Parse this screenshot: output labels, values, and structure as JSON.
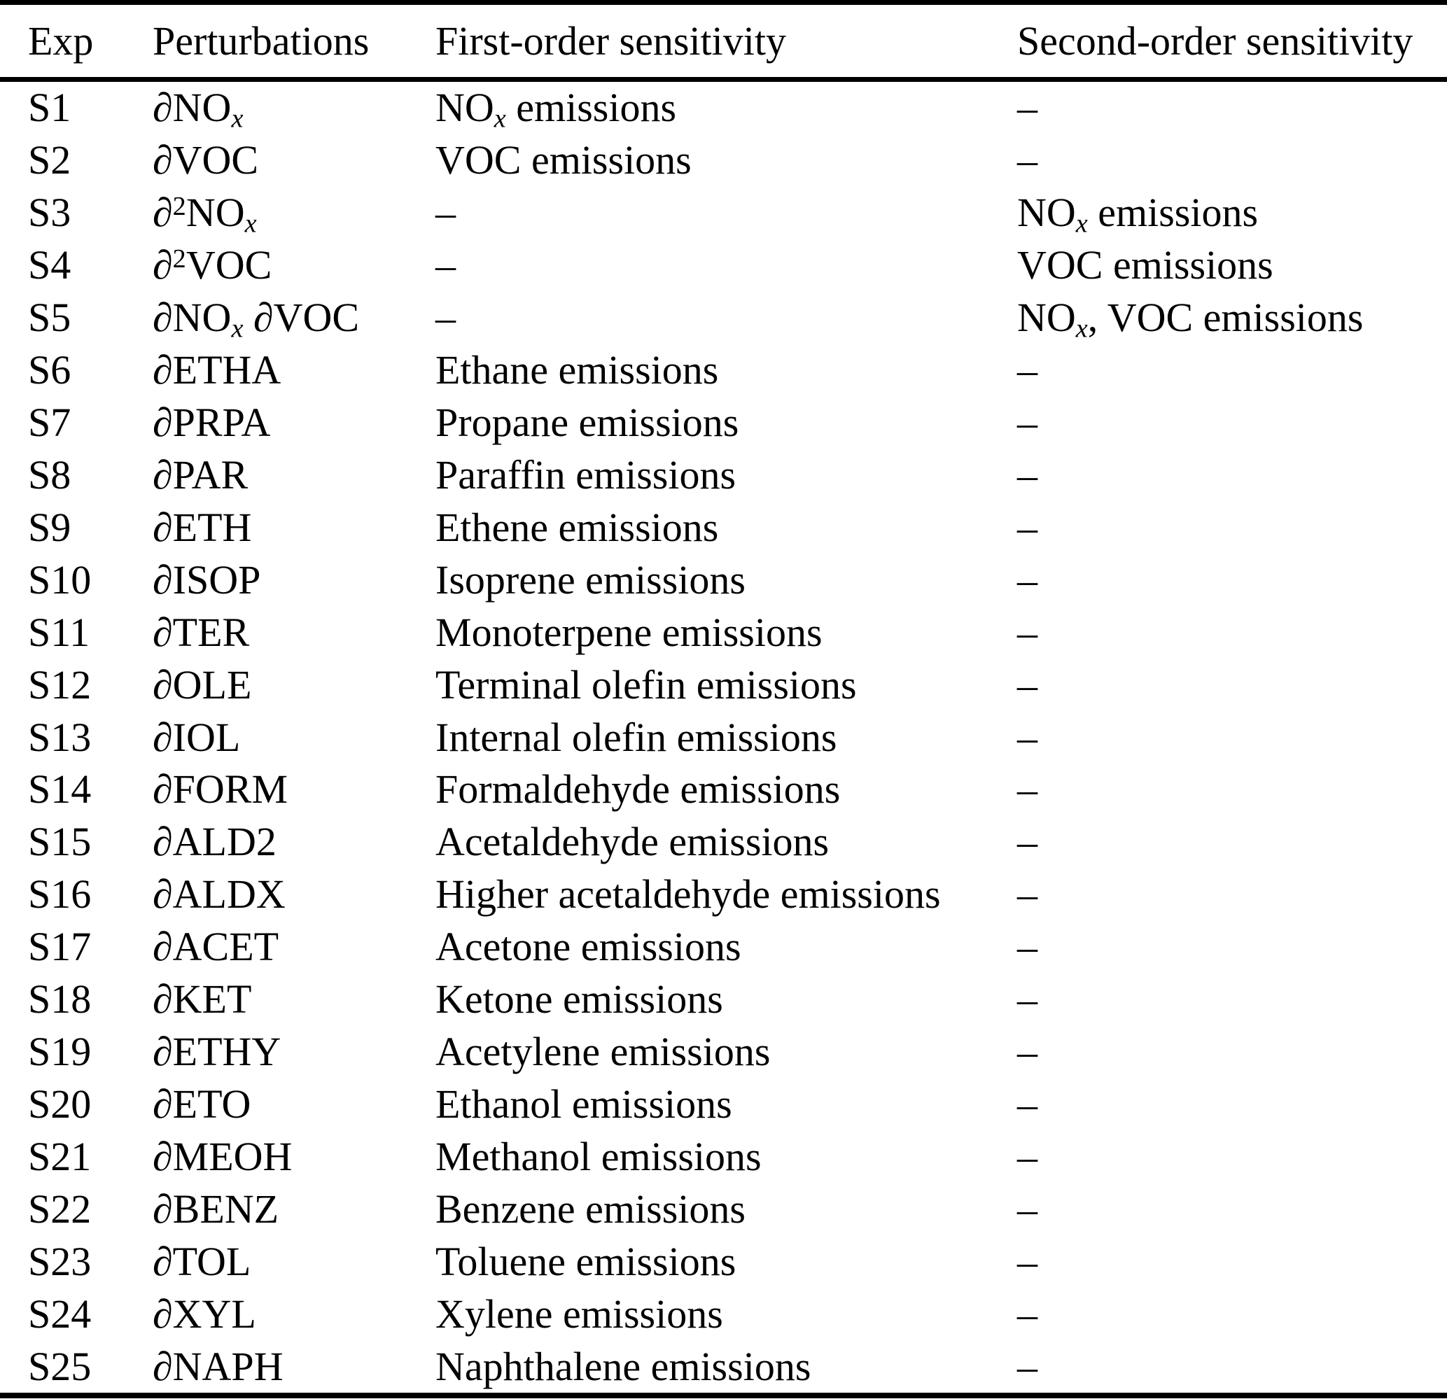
{
  "table": {
    "columns": [
      "Exp",
      "Perturbations",
      "First-order sensitivity",
      "Second-order sensitivity"
    ],
    "rows": [
      {
        "exp": "S1",
        "perturbation": "∂NO~*x*~",
        "first_order": "NO~*x*~ emissions",
        "second_order": "–"
      },
      {
        "exp": "S2",
        "perturbation": "∂VOC",
        "first_order": "VOC emissions",
        "second_order": "–"
      },
      {
        "exp": "S3",
        "perturbation": "∂^2^NO~*x*~",
        "first_order": "–",
        "second_order": "NO~*x*~ emissions"
      },
      {
        "exp": "S4",
        "perturbation": "∂^2^VOC",
        "first_order": "–",
        "second_order": "VOC emissions"
      },
      {
        "exp": "S5",
        "perturbation": "∂NO~*x*~ ∂VOC",
        "first_order": "–",
        "second_order": "NO~*x*~, VOC emissions"
      },
      {
        "exp": "S6",
        "perturbation": "∂ETHA",
        "first_order": "Ethane emissions",
        "second_order": "–"
      },
      {
        "exp": "S7",
        "perturbation": "∂PRPA",
        "first_order": "Propane emissions",
        "second_order": "–"
      },
      {
        "exp": "S8",
        "perturbation": "∂PAR",
        "first_order": "Paraffin emissions",
        "second_order": "–"
      },
      {
        "exp": "S9",
        "perturbation": "∂ETH",
        "first_order": "Ethene emissions",
        "second_order": "–"
      },
      {
        "exp": "S10",
        "perturbation": "∂ISOP",
        "first_order": "Isoprene emissions",
        "second_order": "–"
      },
      {
        "exp": "S11",
        "perturbation": "∂TER",
        "first_order": "Monoterpene emissions",
        "second_order": "–"
      },
      {
        "exp": "S12",
        "perturbation": "∂OLE",
        "first_order": "Terminal olefin emissions",
        "second_order": "–"
      },
      {
        "exp": "S13",
        "perturbation": "∂IOL",
        "first_order": "Internal olefin emissions",
        "second_order": "–"
      },
      {
        "exp": "S14",
        "perturbation": "∂FORM",
        "first_order": "Formaldehyde emissions",
        "second_order": "–"
      },
      {
        "exp": "S15",
        "perturbation": "∂ALD2",
        "first_order": "Acetaldehyde emissions",
        "second_order": "–"
      },
      {
        "exp": "S16",
        "perturbation": "∂ALDX",
        "first_order": "Higher acetaldehyde emissions",
        "second_order": "–"
      },
      {
        "exp": "S17",
        "perturbation": "∂ACET",
        "first_order": "Acetone emissions",
        "second_order": "–"
      },
      {
        "exp": "S18",
        "perturbation": "∂KET",
        "first_order": "Ketone emissions",
        "second_order": "–"
      },
      {
        "exp": "S19",
        "perturbation": "∂ETHY",
        "first_order": "Acetylene emissions",
        "second_order": "–"
      },
      {
        "exp": "S20",
        "perturbation": "∂ETO",
        "first_order": "Ethanol emissions",
        "second_order": "–"
      },
      {
        "exp": "S21",
        "perturbation": "∂MEOH",
        "first_order": "Methanol emissions",
        "second_order": "–"
      },
      {
        "exp": "S22",
        "perturbation": "∂BENZ",
        "first_order": "Benzene emissions",
        "second_order": "–"
      },
      {
        "exp": "S23",
        "perturbation": "∂TOL",
        "first_order": "Toluene emissions",
        "second_order": "–"
      },
      {
        "exp": "S24",
        "perturbation": "∂XYL",
        "first_order": "Xylene emissions",
        "second_order": "–"
      },
      {
        "exp": "S25",
        "perturbation": "∂NAPH",
        "first_order": "Naphthalene emissions",
        "second_order": "–"
      }
    ]
  }
}
